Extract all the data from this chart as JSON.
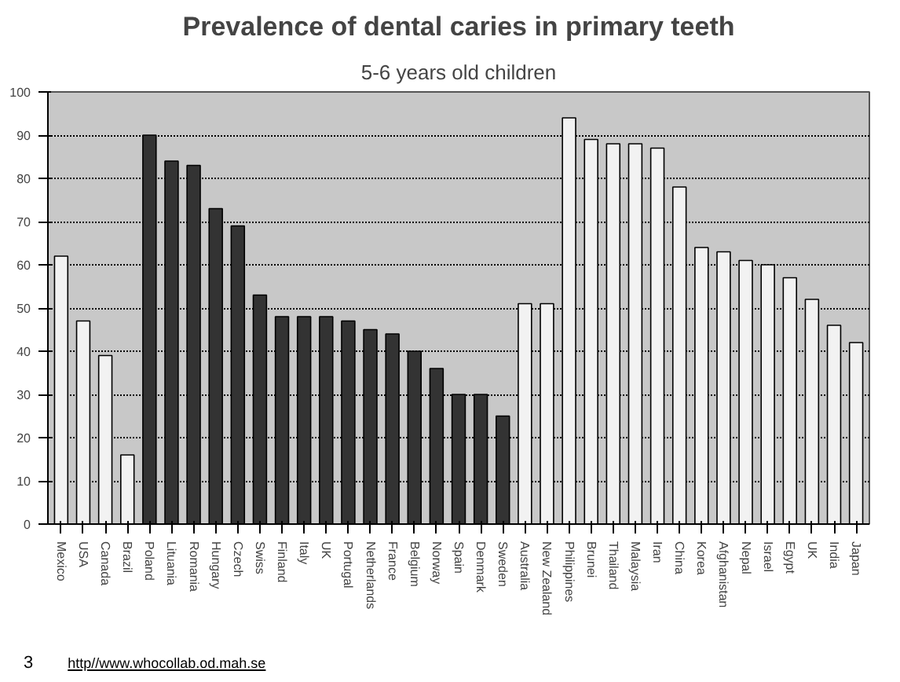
{
  "chart_data": {
    "type": "bar",
    "title": "Prevalence of dental caries in primary teeth",
    "subtitle": "5-6 years old children",
    "categories": [
      "Mexico",
      "USA",
      "Canada",
      "Brazil",
      "Poland",
      "Lituania",
      "Romania",
      "Hungary",
      "Czech",
      "Swiss",
      "Finland",
      "Italy",
      "UK",
      "Portugal",
      "Netherlands",
      "France",
      "Belgium",
      "Norway",
      "Spain",
      "Denmark",
      "Sweden",
      "Australia",
      "New Zealand",
      "Philippines",
      "Brunei",
      "Thailand",
      "Malaysia",
      "Iran",
      "China",
      "Korea",
      "Afghanistan",
      "Nepal",
      "Israel",
      "Egypt",
      "UK",
      "India",
      "Japan"
    ],
    "values": [
      62,
      47,
      39,
      16,
      90,
      84,
      83,
      73,
      69,
      53,
      48,
      48,
      48,
      47,
      45,
      44,
      40,
      36,
      30,
      30,
      25,
      51,
      51,
      94,
      89,
      88,
      88,
      87,
      78,
      64,
      63,
      61,
      60,
      57,
      52,
      46,
      42
    ],
    "colors": [
      "#f2f2f2",
      "#f2f2f2",
      "#f2f2f2",
      "#f2f2f2",
      "#333333",
      "#333333",
      "#333333",
      "#333333",
      "#333333",
      "#333333",
      "#333333",
      "#333333",
      "#333333",
      "#333333",
      "#333333",
      "#333333",
      "#333333",
      "#333333",
      "#333333",
      "#333333",
      "#333333",
      "#f2f2f2",
      "#f2f2f2",
      "#f2f2f2",
      "#f2f2f2",
      "#f2f2f2",
      "#f2f2f2",
      "#f2f2f2",
      "#f2f2f2",
      "#f2f2f2",
      "#f2f2f2",
      "#f2f2f2",
      "#f2f2f2",
      "#f2f2f2",
      "#f2f2f2",
      "#f2f2f2",
      "#f2f2f2"
    ],
    "ylim": [
      0,
      100
    ],
    "yticks": [
      0,
      10,
      20,
      30,
      40,
      50,
      60,
      70,
      80,
      90,
      100
    ],
    "grid": "y",
    "annotations": [
      "3",
      "http//www.whocollab.od.mah.se"
    ]
  }
}
